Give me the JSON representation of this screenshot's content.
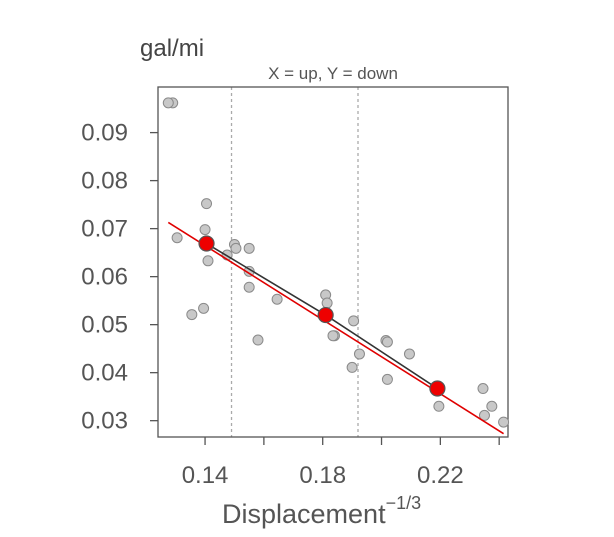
{
  "chart_data": {
    "type": "scatter",
    "title": "",
    "subtitle": "X = up, Y = down",
    "y_unit": "gal/mi",
    "xlabel": "Displacement",
    "xlabel_exponent": "−1/3",
    "xlim": [
      0.124,
      0.243
    ],
    "ylim": [
      0.0266,
      0.0995
    ],
    "x_ticks": [
      0.14,
      0.16,
      0.18,
      0.2,
      0.22,
      0.24
    ],
    "x_tick_labels": [
      "0.14",
      "",
      "0.18",
      "",
      "0.22",
      ""
    ],
    "y_ticks": [
      0.03,
      0.04,
      0.05,
      0.06,
      0.07,
      0.08,
      0.09
    ],
    "y_tick_labels": [
      "0.03",
      "0.04",
      "0.05",
      "0.06",
      "0.07",
      "0.08",
      "0.09"
    ],
    "vertical_guides": [
      0.149,
      0.192
    ],
    "grid": false,
    "colors": {
      "points": "#c8c8c8",
      "point_stroke": "#8a8a8a",
      "fit_line": "#e00000",
      "summary_points": "#ee0000",
      "summary_line": "#333333",
      "guides": "#aaaaaa",
      "frame": "#555555"
    },
    "points": [
      {
        "x": 0.129,
        "y": 0.0962
      },
      {
        "x": 0.1275,
        "y": 0.0962
      },
      {
        "x": 0.1405,
        "y": 0.0752
      },
      {
        "x": 0.14,
        "y": 0.0698
      },
      {
        "x": 0.1305,
        "y": 0.0681
      },
      {
        "x": 0.1405,
        "y": 0.0664
      },
      {
        "x": 0.15,
        "y": 0.0667
      },
      {
        "x": 0.155,
        "y": 0.0659
      },
      {
        "x": 0.1505,
        "y": 0.0659
      },
      {
        "x": 0.1475,
        "y": 0.0645
      },
      {
        "x": 0.141,
        "y": 0.0633
      },
      {
        "x": 0.155,
        "y": 0.0611
      },
      {
        "x": 0.155,
        "y": 0.0578
      },
      {
        "x": 0.1645,
        "y": 0.0553
      },
      {
        "x": 0.1395,
        "y": 0.0534
      },
      {
        "x": 0.1355,
        "y": 0.0521
      },
      {
        "x": 0.158,
        "y": 0.0468
      },
      {
        "x": 0.181,
        "y": 0.0562
      },
      {
        "x": 0.1815,
        "y": 0.0545
      },
      {
        "x": 0.1905,
        "y": 0.0508
      },
      {
        "x": 0.184,
        "y": 0.0477
      },
      {
        "x": 0.1835,
        "y": 0.0477
      },
      {
        "x": 0.2015,
        "y": 0.0467
      },
      {
        "x": 0.202,
        "y": 0.0464
      },
      {
        "x": 0.2095,
        "y": 0.0439
      },
      {
        "x": 0.1925,
        "y": 0.0439
      },
      {
        "x": 0.19,
        "y": 0.0411
      },
      {
        "x": 0.202,
        "y": 0.0386
      },
      {
        "x": 0.2345,
        "y": 0.0367
      },
      {
        "x": 0.2195,
        "y": 0.033
      },
      {
        "x": 0.2375,
        "y": 0.033
      },
      {
        "x": 0.235,
        "y": 0.0311
      },
      {
        "x": 0.2415,
        "y": 0.0297
      }
    ],
    "fit_line": [
      {
        "x": 0.1275,
        "y": 0.0713
      },
      {
        "x": 0.2415,
        "y": 0.0273
      }
    ],
    "summary_points": [
      {
        "x": 0.1405,
        "y": 0.0669
      },
      {
        "x": 0.181,
        "y": 0.052
      },
      {
        "x": 0.219,
        "y": 0.0367
      }
    ]
  }
}
